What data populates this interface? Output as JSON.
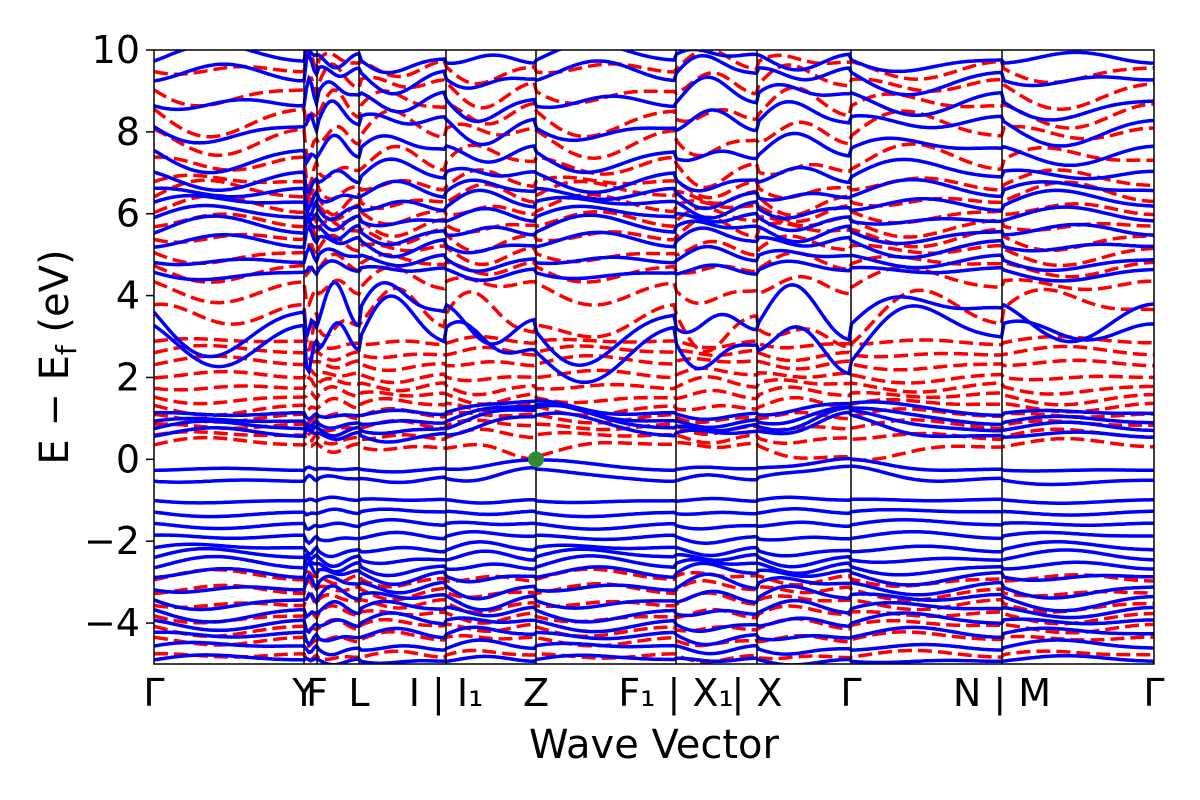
{
  "chart_data": {
    "type": "line",
    "xlabel": "Wave Vector",
    "ylabel": "E − E",
    "ylabel_sub": "f",
    "ylabel_unit": " (eV)",
    "ylim": [
      -5,
      10
    ],
    "yticks": [
      {
        "value": 10,
        "label": "10"
      },
      {
        "value": 8,
        "label": "8"
      },
      {
        "value": 6,
        "label": "6"
      },
      {
        "value": 4,
        "label": "4"
      },
      {
        "value": 2,
        "label": "2"
      },
      {
        "value": 0,
        "label": "0"
      },
      {
        "value": -2,
        "label": "−2"
      },
      {
        "value": -4,
        "label": "−4"
      }
    ],
    "xlim": [
      0,
      10
    ],
    "kpoints": [
      {
        "x": 0.0,
        "label": "Γ"
      },
      {
        "x": 1.5,
        "label": "Y"
      },
      {
        "x": 1.63,
        "label": "F"
      },
      {
        "x": 2.05,
        "label": "L"
      },
      {
        "x": 2.92,
        "label": "I | I₁"
      },
      {
        "x": 3.82,
        "label": "Z"
      },
      {
        "x": 5.22,
        "label": "F₁ | X₁"
      },
      {
        "x": 6.03,
        "label": "| X"
      },
      {
        "x": 6.97,
        "label": "Γ"
      },
      {
        "x": 8.48,
        "label": "N | M"
      },
      {
        "x": 10.0,
        "label": "Γ"
      }
    ],
    "marker": {
      "x": 3.82,
      "y": 0.0,
      "color": "#2e8b2e"
    },
    "series": [
      {
        "style": "solid",
        "color": "#0000ff",
        "bands": [
          {
            "base": -4.9,
            "amp": 0.1
          },
          {
            "base": -4.6,
            "amp": 0.15
          },
          {
            "base": -4.3,
            "amp": 0.18
          },
          {
            "base": -4.0,
            "amp": 0.2
          },
          {
            "base": -3.7,
            "amp": 0.22
          },
          {
            "base": -3.4,
            "amp": 0.25
          },
          {
            "base": -3.1,
            "amp": 0.25
          },
          {
            "base": -2.8,
            "amp": 0.22
          },
          {
            "base": -2.6,
            "amp": 0.2
          },
          {
            "base": -2.4,
            "amp": 0.18
          },
          {
            "base": -2.2,
            "amp": 0.15
          },
          {
            "base": -1.9,
            "amp": 0.12
          },
          {
            "base": -1.6,
            "amp": 0.1
          },
          {
            "base": -1.3,
            "amp": 0.08
          },
          {
            "base": -1.0,
            "amp": 0.06
          },
          {
            "base": -0.5,
            "amp": 0.1,
            "peak_z": 0.3
          },
          {
            "base": -0.25,
            "amp": 0.05,
            "peak_z": 0.25
          },
          {
            "base": 0.6,
            "amp": 0.15,
            "peak_z": 0.5
          },
          {
            "base": 0.75,
            "amp": 0.15,
            "peak_z": 0.5
          },
          {
            "base": 0.9,
            "amp": 0.12,
            "peak_z": 0.4
          },
          {
            "base": 1.1,
            "amp": 0.1,
            "peak_z": 0.3
          },
          {
            "base": 3.0,
            "amp": 0.8,
            "peak_z": -0.6
          },
          {
            "base": 3.5,
            "amp": 0.8,
            "peak_z": -0.4
          },
          {
            "base": 4.6,
            "amp": 0.2
          },
          {
            "base": 4.9,
            "amp": 0.25
          },
          {
            "base": 5.3,
            "amp": 0.3
          },
          {
            "base": 5.6,
            "amp": 0.3
          },
          {
            "base": 5.9,
            "amp": 0.25
          },
          {
            "base": 6.2,
            "amp": 0.3
          },
          {
            "base": 6.5,
            "amp": 0.3
          },
          {
            "base": 6.9,
            "amp": 0.35
          },
          {
            "base": 7.5,
            "amp": 0.4
          },
          {
            "base": 8.2,
            "amp": 0.45
          },
          {
            "base": 8.8,
            "amp": 0.45
          },
          {
            "base": 9.4,
            "amp": 0.4
          },
          {
            "base": 9.8,
            "amp": 0.3
          }
        ]
      },
      {
        "style": "dashed",
        "color": "#ff0000",
        "bands": [
          {
            "base": -4.8,
            "amp": 0.12
          },
          {
            "base": -4.4,
            "amp": 0.15
          },
          {
            "base": -4.1,
            "amp": 0.18
          },
          {
            "base": -3.8,
            "amp": 0.18
          },
          {
            "base": -3.5,
            "amp": 0.2
          },
          {
            "base": -3.2,
            "amp": 0.2
          },
          {
            "base": -2.9,
            "amp": 0.18
          },
          {
            "base": 0.35,
            "amp": 0.15,
            "peak_z": -0.3
          },
          {
            "base": 0.55,
            "amp": 0.15
          },
          {
            "base": 0.8,
            "amp": 0.15
          },
          {
            "base": 1.05,
            "amp": 0.15
          },
          {
            "base": 1.3,
            "amp": 0.18
          },
          {
            "base": 1.55,
            "amp": 0.18
          },
          {
            "base": 1.8,
            "amp": 0.18
          },
          {
            "base": 2.05,
            "amp": 0.15
          },
          {
            "base": 2.35,
            "amp": 0.15
          },
          {
            "base": 2.6,
            "amp": 0.15
          },
          {
            "base": 2.85,
            "amp": 0.12
          },
          {
            "base": 3.5,
            "amp": 0.7,
            "peak_z": -0.5
          },
          {
            "base": 4.2,
            "amp": 0.4
          },
          {
            "base": 4.7,
            "amp": 0.3
          },
          {
            "base": 5.1,
            "amp": 0.3
          },
          {
            "base": 5.5,
            "amp": 0.35
          },
          {
            "base": 5.8,
            "amp": 0.3
          },
          {
            "base": 6.1,
            "amp": 0.3
          },
          {
            "base": 6.4,
            "amp": 0.35
          },
          {
            "base": 6.7,
            "amp": 0.3
          },
          {
            "base": 7.2,
            "amp": 0.45
          },
          {
            "base": 7.9,
            "amp": 0.5
          },
          {
            "base": 8.5,
            "amp": 0.5
          },
          {
            "base": 9.1,
            "amp": 0.45
          },
          {
            "base": 9.6,
            "amp": 0.35
          }
        ]
      }
    ]
  }
}
